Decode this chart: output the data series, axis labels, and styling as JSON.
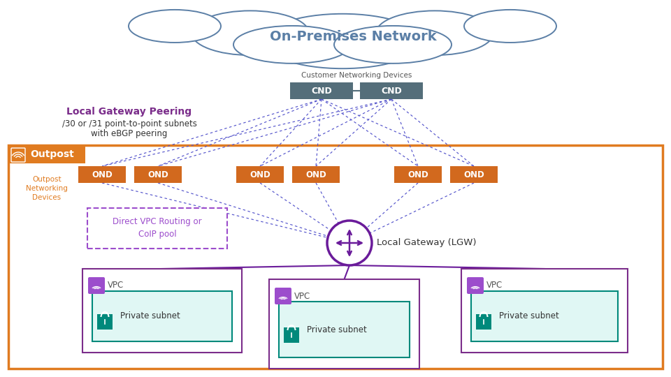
{
  "title": "On-Premises Network",
  "cloud_color": "#5b7fa6",
  "cnd_label": "Customer Networking Devices",
  "cnd_text": "CND",
  "cnd_color": "#546e7a",
  "cnd_text_color": "white",
  "ond_text": "OND",
  "ond_bg": "#d2691e",
  "outpost_border": "#e07b20",
  "outpost_label": "Outpost",
  "lgw_color": "#6a1b9a",
  "lgw_label": "Local Gateway (LGW)",
  "vpc_border": "#7b2d8b",
  "vpc_label": "VPC",
  "vpc_icon_color": "#9c4dcc",
  "subnet_border": "#00897b",
  "subnet_fill": "#e0f7f4",
  "subnet_label": "Private subnet",
  "peering_title": "Local Gateway Peering",
  "peering_title_color": "#7b2d8b",
  "peering_desc1": "/30 or /31 point-to-point subnets",
  "peering_desc2": "with eBGP peering",
  "dot_line_color": "#5555cc",
  "solid_line_color": "#6a1b9a",
  "direct_vpc_label1": "Direct VPC Routing or",
  "direct_vpc_label2": "CoIP pool",
  "direct_vpc_color": "#9c4dcc",
  "outpost_networking_label": "Outpost\nNetworking\nDevices",
  "outpost_networking_color": "#e07b20",
  "bg": "white"
}
